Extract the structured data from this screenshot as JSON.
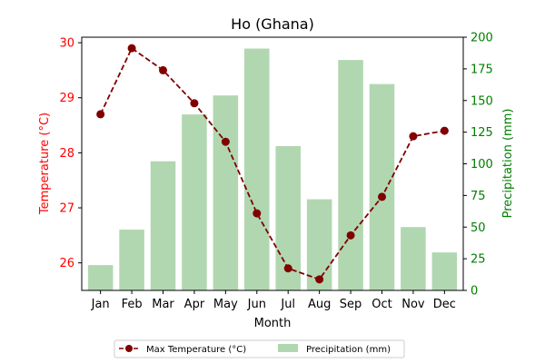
{
  "chart_data": {
    "type": "bar+line",
    "title": "Ho (Ghana)",
    "xlabel": "Month",
    "categories": [
      "Jan",
      "Feb",
      "Mar",
      "Apr",
      "May",
      "Jun",
      "Jul",
      "Aug",
      "Sep",
      "Oct",
      "Nov",
      "Dec"
    ],
    "series": [
      {
        "name": "Max Temperature (°C)",
        "kind": "line",
        "axis": "left",
        "values": [
          28.7,
          29.9,
          29.5,
          28.9,
          28.2,
          26.9,
          25.9,
          25.7,
          26.5,
          27.2,
          28.3,
          28.4
        ],
        "color": "#800000",
        "style": "dashed, circle markers"
      },
      {
        "name": "Precipitation (mm)",
        "kind": "bar",
        "axis": "right",
        "values": [
          20,
          48,
          102,
          139,
          154,
          191,
          114,
          72,
          182,
          163,
          50,
          30
        ],
        "color": "#b1d7b1"
      }
    ],
    "y_left": {
      "label": "Temperature (°C)",
      "range": [
        25.5,
        30.1
      ],
      "ticks": [
        26,
        27,
        28,
        29,
        30
      ],
      "color": "#ff0000"
    },
    "y_right": {
      "label": "Precipitation (mm)",
      "range": [
        0,
        200
      ],
      "ticks": [
        0,
        25,
        50,
        75,
        100,
        125,
        150,
        175,
        200
      ],
      "color": "#008000"
    },
    "grid": false,
    "legend_position": "bottom-center"
  }
}
